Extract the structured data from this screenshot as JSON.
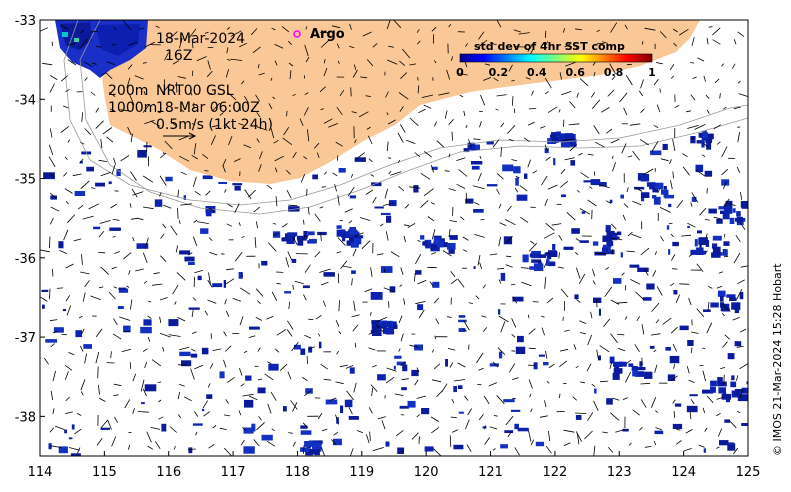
{
  "map": {
    "date": "18-Mar-2024",
    "time": "16Z",
    "depth_contour_1": "200m",
    "depth_contour_2": "1000m",
    "product": "NRT00 GSL",
    "product_time": "18-Mar 06:00Z",
    "vector_scale": "0.5m/s (1kt 24h)",
    "argo_label": "Argo",
    "credit": "© IMOS 21-Mar-2024 15:28 Hobart"
  },
  "colorbar": {
    "title": "std dev of 4hr SST comp",
    "ticks": [
      "0",
      "0.2",
      "0.4",
      "0.6",
      "0.8",
      "1"
    ],
    "range": [
      0,
      1
    ]
  },
  "axes": {
    "lon_range": [
      114,
      125
    ],
    "lat_range": [
      -38.5,
      -33
    ],
    "lon_ticks": [
      "114",
      "115",
      "116",
      "117",
      "118",
      "119",
      "120",
      "121",
      "122",
      "123",
      "124",
      "125"
    ],
    "lat_ticks": [
      "-33",
      "-34",
      "-35",
      "-36",
      "-37",
      "-38"
    ]
  },
  "colors": {
    "land": "#f9c896",
    "sst_low": "#0a1a9a",
    "sst_mid": "#00c8c8",
    "sst_high": "#8b0000",
    "argo": "#ff00ff"
  }
}
